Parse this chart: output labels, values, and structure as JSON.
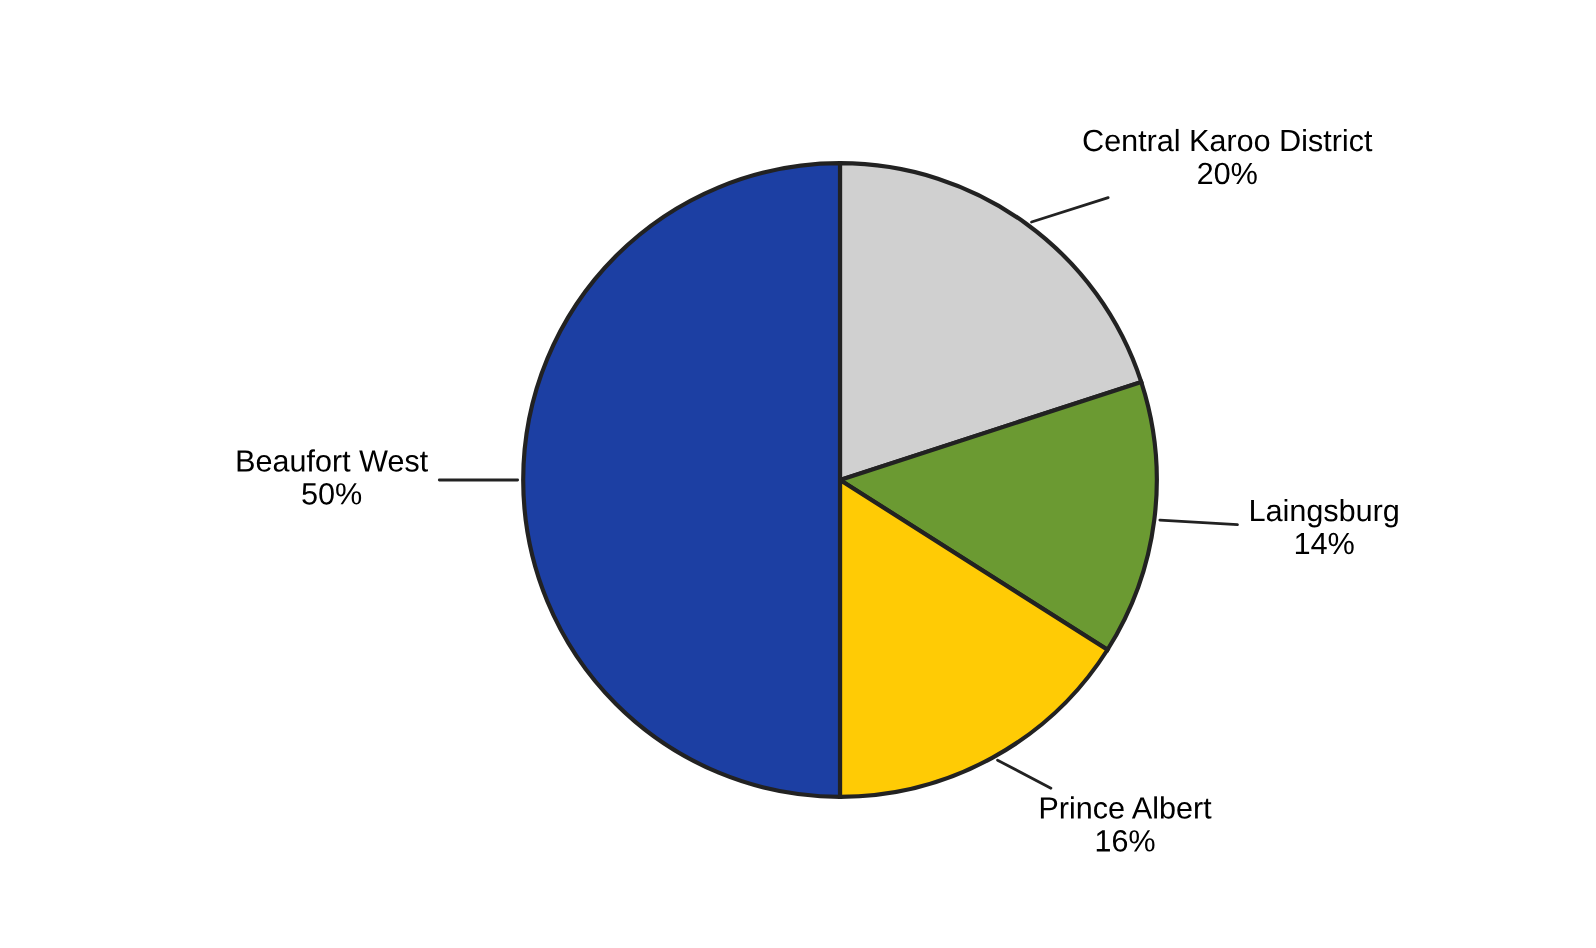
{
  "chart_data": {
    "type": "pie",
    "categories": [
      "Central Karoo District",
      "Laingsburg",
      "Prince Albert",
      "Beaufort West"
    ],
    "values": [
      20,
      14,
      16,
      50
    ],
    "value_labels": [
      "20%",
      "14%",
      "16%",
      "50%"
    ],
    "colors": [
      "#d0d0d0",
      "#6b9a32",
      "#ffcb05",
      "#1c3fa3"
    ]
  }
}
